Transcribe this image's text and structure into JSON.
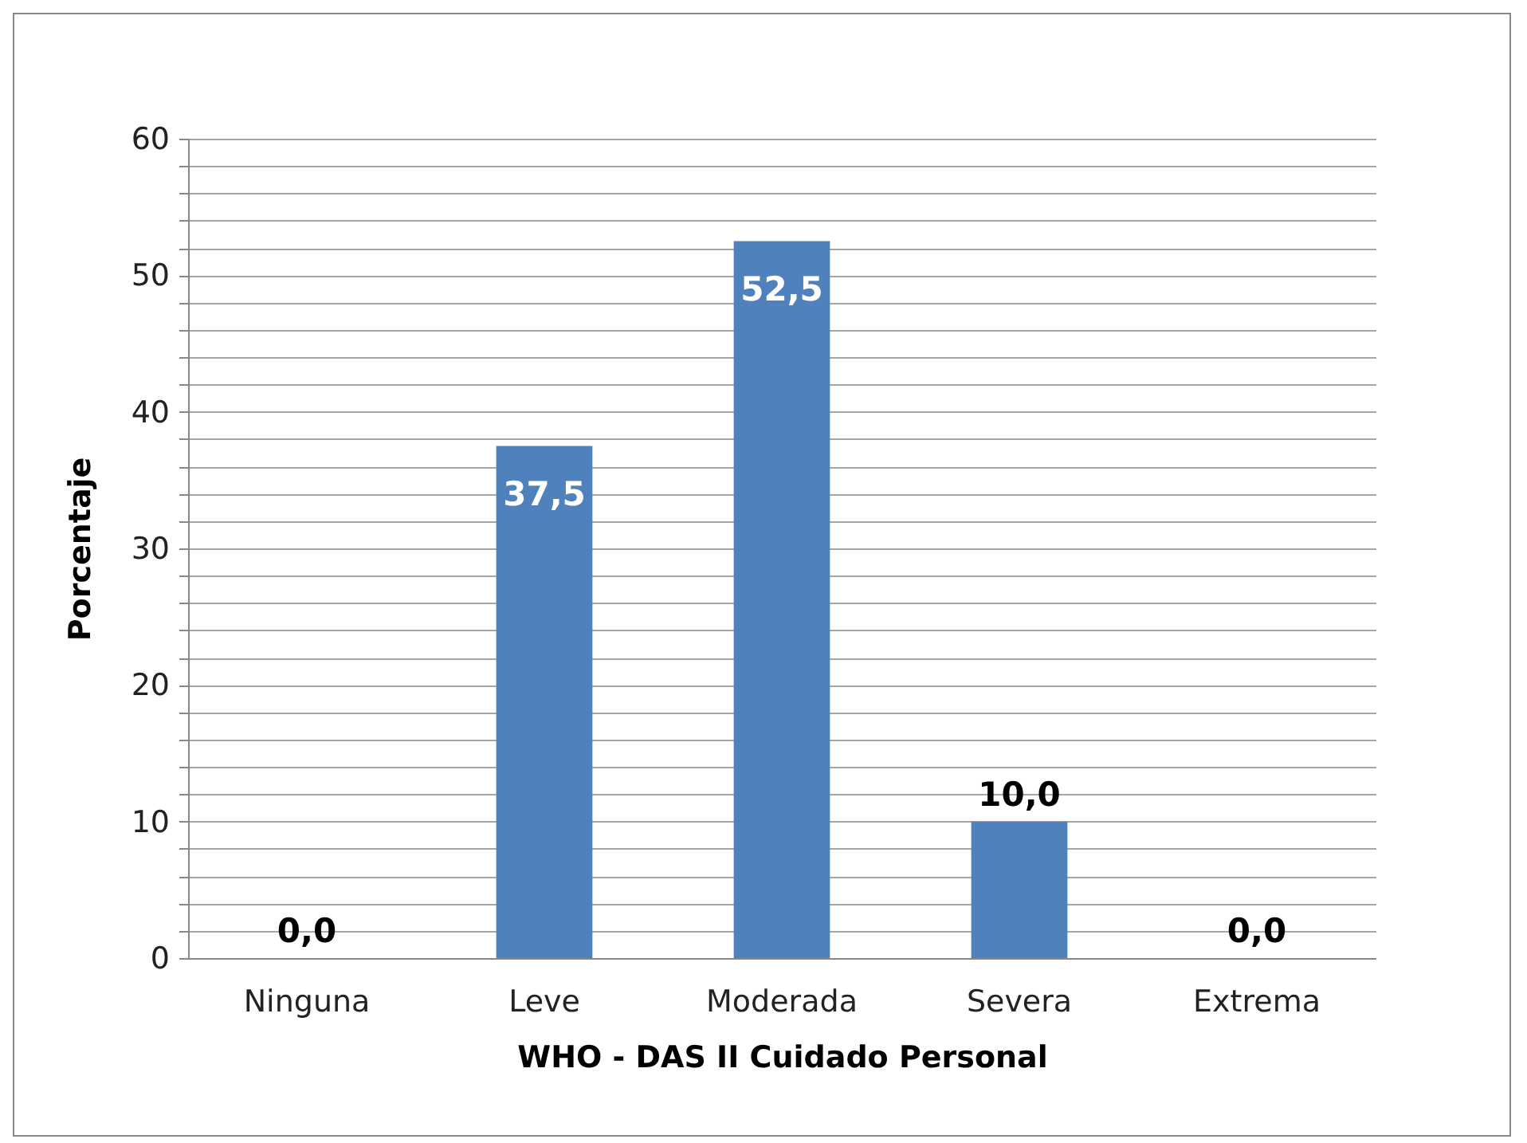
{
  "chart_data": {
    "type": "bar",
    "xlabel": "WHO - DAS II Cuidado Personal",
    "ylabel": "Porcentaje",
    "categories": [
      "Ninguna",
      "Leve",
      "Moderada",
      "Severa",
      "Extrema"
    ],
    "values": [
      0,
      37.5,
      52.5,
      10,
      0
    ],
    "value_labels": [
      "0,0",
      "37,5",
      "52,5",
      "10,0",
      "0,0"
    ],
    "color": "#4f81bd",
    "ylim": [
      0,
      60
    ],
    "yticks": [
      0,
      {
        "value": 2,
        "label": null
      },
      {
        "value": 4,
        "label": null
      },
      {
        "value": 6,
        "label": null
      },
      {
        "value": 8,
        "label": null
      },
      10,
      {
        "value": 12,
        "label": null
      },
      {
        "value": 14,
        "label": null
      },
      {
        "value": 16,
        "label": null
      },
      {
        "value": 18,
        "label": null
      },
      20,
      {
        "value": 22,
        "label": null
      },
      {
        "value": 24,
        "label": null
      },
      {
        "value": 26,
        "label": null
      },
      {
        "value": 28,
        "label": null
      },
      30,
      {
        "value": 32,
        "label": null
      },
      {
        "value": 34,
        "label": null
      },
      {
        "value": 36,
        "label": null
      },
      {
        "value": 38,
        "label": null
      },
      40,
      {
        "value": 42,
        "label": null
      },
      {
        "value": 44,
        "label": null
      },
      {
        "value": 46,
        "label": null
      },
      {
        "value": 48,
        "label": null
      },
      50,
      {
        "value": 52,
        "label": null
      },
      {
        "value": 54,
        "label": null
      },
      {
        "value": 56,
        "label": null
      },
      {
        "value": 58,
        "label": null
      },
      60
    ],
    "grid": true
  }
}
